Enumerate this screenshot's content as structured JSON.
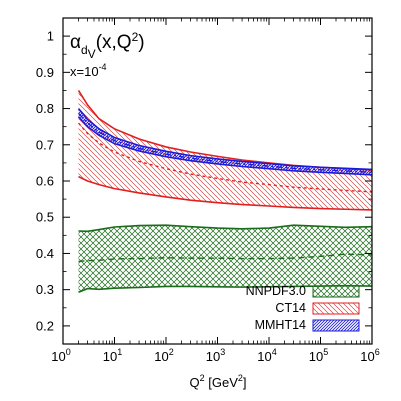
{
  "chart_data": {
    "type": "area",
    "title": {
      "base": "α",
      "sub": "d",
      "subsub": "V",
      "rest": "(x,Q",
      "sup": "2",
      "close": ")"
    },
    "annotation": {
      "base": "x=10",
      "exp": "-4"
    },
    "xlabel": {
      "base": "Q",
      "sup": "2",
      "unit_open": " [GeV",
      "unit_sup": "2",
      "unit_close": "]"
    },
    "x_scale": "log",
    "xlim": [
      1,
      1000000
    ],
    "ylim": [
      0.15,
      1.05
    ],
    "x_ticks": [
      {
        "value": 1,
        "base": "10",
        "exp": "0"
      },
      {
        "value": 10,
        "base": "10",
        "exp": "1"
      },
      {
        "value": 100,
        "base": "10",
        "exp": "2"
      },
      {
        "value": 1000,
        "base": "10",
        "exp": "3"
      },
      {
        "value": 10000,
        "base": "10",
        "exp": "4"
      },
      {
        "value": 100000,
        "base": "10",
        "exp": "5"
      },
      {
        "value": 1000000,
        "base": "10",
        "exp": "6"
      }
    ],
    "y_ticks": [
      "0.2",
      "0.3",
      "0.4",
      "0.5",
      "0.6",
      "0.7",
      "0.8",
      "0.9",
      "1"
    ],
    "grid": false,
    "legend_position": "bottom-right",
    "x": [
      2,
      3,
      5,
      10,
      30,
      100,
      300,
      1000,
      3000,
      10000,
      30000,
      100000,
      300000,
      1000000
    ],
    "series": [
      {
        "name": "NNPDF3.0",
        "color": "#1a6b1a",
        "pattern": "crosshatch",
        "central": [
          0.378,
          0.38,
          0.381,
          0.385,
          0.386,
          0.388,
          0.387,
          0.387,
          0.386,
          0.386,
          0.387,
          0.392,
          0.398,
          0.396
        ],
        "lower": [
          0.293,
          0.303,
          0.301,
          0.304,
          0.306,
          0.309,
          0.309,
          0.308,
          0.307,
          0.308,
          0.309,
          0.31,
          0.311,
          0.31
        ],
        "upper": [
          0.462,
          0.461,
          0.466,
          0.473,
          0.477,
          0.478,
          0.474,
          0.47,
          0.468,
          0.47,
          0.478,
          0.475,
          0.472,
          0.474
        ]
      },
      {
        "name": "CT14",
        "color": "#e02020",
        "pattern": "diagonal",
        "central": [
          0.76,
          0.731,
          0.705,
          0.68,
          0.654,
          0.634,
          0.619,
          0.607,
          0.597,
          0.59,
          0.583,
          0.578,
          0.574,
          0.57
        ],
        "lower": [
          0.612,
          0.6,
          0.59,
          0.579,
          0.567,
          0.556,
          0.547,
          0.54,
          0.535,
          0.531,
          0.527,
          0.524,
          0.522,
          0.52
        ],
        "upper": [
          0.85,
          0.81,
          0.772,
          0.744,
          0.716,
          0.694,
          0.68,
          0.668,
          0.658,
          0.65,
          0.643,
          0.638,
          0.634,
          0.63
        ]
      },
      {
        "name": "MMHT14",
        "color": "#1a1adc",
        "pattern": "diagonal-reverse",
        "central": [
          0.787,
          0.76,
          0.735,
          0.711,
          0.69,
          0.674,
          0.663,
          0.654,
          0.647,
          0.641,
          0.635,
          0.631,
          0.628,
          0.624
        ],
        "lower": [
          0.777,
          0.75,
          0.726,
          0.703,
          0.683,
          0.667,
          0.656,
          0.647,
          0.64,
          0.634,
          0.628,
          0.624,
          0.621,
          0.617
        ],
        "upper": [
          0.8,
          0.77,
          0.744,
          0.72,
          0.698,
          0.682,
          0.67,
          0.661,
          0.654,
          0.648,
          0.642,
          0.638,
          0.635,
          0.632
        ]
      }
    ]
  }
}
